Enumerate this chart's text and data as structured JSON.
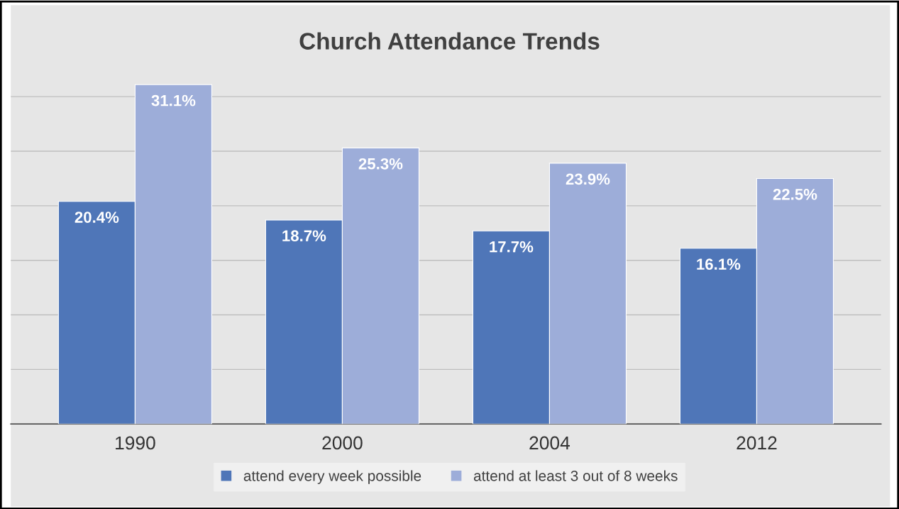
{
  "chart_data": {
    "type": "bar",
    "title": "Church Attendance Trends",
    "categories": [
      "1990",
      "2000",
      "2004",
      "2012"
    ],
    "series": [
      {
        "name": "attend every week possible",
        "color": "#4f76b8",
        "values": [
          20.4,
          18.7,
          17.7,
          16.1
        ],
        "value_labels": [
          "20.4%",
          "18.7%",
          "17.7%",
          "16.1%"
        ]
      },
      {
        "name": "attend at least 3 out of 8 weeks",
        "color": "#9dadd9",
        "values": [
          31.1,
          25.3,
          23.9,
          22.5
        ],
        "value_labels": [
          "31.1%",
          "25.3%",
          "23.9%",
          "22.5%"
        ]
      }
    ],
    "tick_labels": "x",
    "grid": "y",
    "legend": "bottom"
  }
}
